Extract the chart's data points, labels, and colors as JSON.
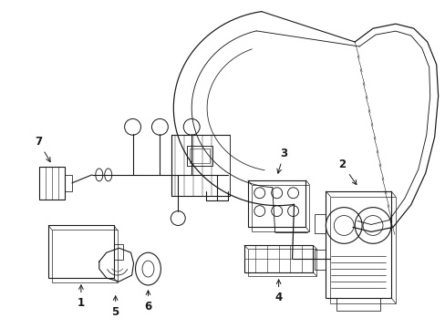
{
  "background_color": "#ffffff",
  "line_color": "#1a1a1a",
  "lw": 0.8,
  "fig_w": 4.89,
  "fig_h": 3.6,
  "dpi": 100
}
